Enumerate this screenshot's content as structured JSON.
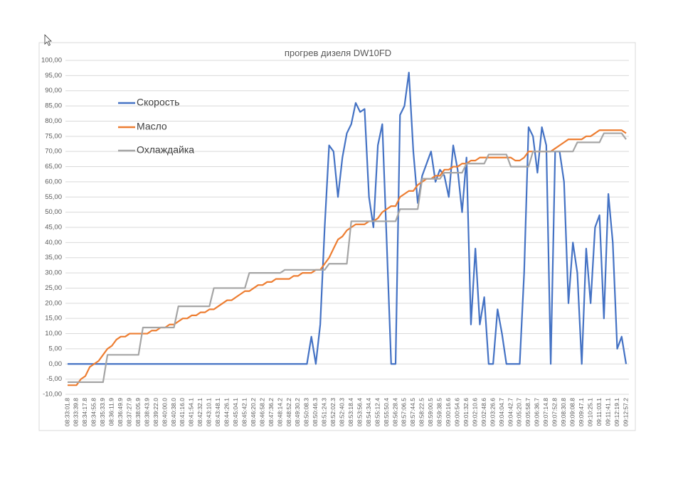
{
  "chart_data": {
    "type": "line",
    "title": "прогрев дизеля DW10FD",
    "categories": [
      "08:33:01.8",
      null,
      "08:33:39.8",
      null,
      "08:34:17.8",
      null,
      "08:34:55.8",
      null,
      "08:35:33.9",
      null,
      "08:36:11.9",
      null,
      "08:36:49.9",
      null,
      "08:37:27.9",
      null,
      "08:38:05.9",
      null,
      "08:38:43.9",
      null,
      "08:39:22.0",
      null,
      "08:40:00.0",
      null,
      "08:40:38.0",
      null,
      "08:41:16.0",
      null,
      "08:41:54.1",
      null,
      "08:42:32.1",
      null,
      "08:43:10.1",
      null,
      "08:43:48.1",
      null,
      "08:44:26.1",
      null,
      "08:45:04.1",
      null,
      "08:45:42.1",
      null,
      "08:46:20.2",
      null,
      "08:46:58.2",
      null,
      "08:47:36.2",
      null,
      "08:48:14.2",
      null,
      "08:48:52.2",
      null,
      "08:49:30.2",
      null,
      "08:50:08.3",
      null,
      "08:50:46.3",
      null,
      "08:51:24.3",
      null,
      "08:52:02.3",
      null,
      "08:52:40.3",
      null,
      "08:53:18.4",
      null,
      "08:53:56.4",
      null,
      "08:54:34.4",
      null,
      "08:55:12.4",
      null,
      "08:55:50.4",
      null,
      "08:56:28.4",
      null,
      "08:57:06.5",
      null,
      "08:57:44.5",
      null,
      "08:58:22.5",
      null,
      "08:59:00.5",
      null,
      "08:59:38.5",
      null,
      "09:00:16.6",
      null,
      "09:00:54.6",
      null,
      "09:01:32.6",
      null,
      "09:02:10.6",
      null,
      "09:02:48.6",
      null,
      "09:03:26.6",
      null,
      "09:04:04.7",
      null,
      "09:04:42.7",
      null,
      "09:05:20.7",
      null,
      "09:05:58.7",
      null,
      "09:06:36.7",
      null,
      "09:07:14.8",
      null,
      "09:07:52.8",
      null,
      "09:08:30.8",
      null,
      "09:09:08.8",
      null,
      "09:09:47.1",
      null,
      "09:10:25.1",
      null,
      "09:11:03.1",
      null,
      "09:11:41.1",
      null,
      "09:12:19.1",
      null,
      "09:12:57.2"
    ],
    "series": [
      {
        "name": "Скорость",
        "color": "#4472c4",
        "values": [
          0,
          0,
          0,
          0,
          0,
          0,
          0,
          0,
          0,
          0,
          0,
          0,
          0,
          0,
          0,
          0,
          0,
          0,
          0,
          0,
          0,
          0,
          0,
          0,
          0,
          0,
          0,
          0,
          0,
          0,
          0,
          0,
          0,
          0,
          0,
          0,
          0,
          0,
          0,
          0,
          0,
          0,
          0,
          0,
          0,
          0,
          0,
          0,
          0,
          0,
          0,
          0,
          0,
          0,
          0,
          9,
          0,
          13,
          45,
          72,
          70,
          55,
          68,
          76,
          79,
          86,
          83,
          84,
          55,
          45,
          72,
          79,
          40,
          0,
          0,
          82,
          85,
          96,
          70,
          53,
          62,
          66,
          70,
          60,
          64,
          62,
          55,
          72,
          64,
          50,
          68,
          13,
          38,
          13,
          22,
          0,
          0,
          18,
          10,
          0,
          0,
          0,
          0,
          30,
          78,
          75,
          63,
          78,
          72,
          0,
          70,
          70,
          60,
          20,
          40,
          30,
          0,
          38,
          20,
          45,
          49,
          15,
          56,
          40,
          5,
          9,
          0
        ]
      },
      {
        "name": "Масло",
        "color": "#ed7d31",
        "values": [
          -7,
          -7,
          -7,
          -5,
          -4,
          -1,
          0,
          1,
          3,
          5,
          6,
          8,
          9,
          9,
          10,
          10,
          10,
          10,
          10,
          11,
          11,
          12,
          12,
          13,
          13,
          14,
          15,
          15,
          16,
          16,
          17,
          17,
          18,
          18,
          19,
          20,
          21,
          21,
          22,
          23,
          24,
          24,
          25,
          26,
          26,
          27,
          27,
          28,
          28,
          28,
          28,
          29,
          29,
          30,
          30,
          30,
          31,
          31,
          33,
          35,
          38,
          41,
          42,
          44,
          45,
          46,
          46,
          46,
          47,
          47,
          48,
          50,
          51,
          52,
          52,
          55,
          56,
          57,
          57,
          59,
          60,
          61,
          61,
          62,
          62,
          64,
          64,
          65,
          65,
          66,
          66,
          67,
          67,
          68,
          68,
          68,
          68,
          68,
          68,
          68,
          68,
          67,
          67,
          68,
          70,
          70,
          70,
          70,
          70,
          70,
          71,
          72,
          73,
          74,
          74,
          74,
          74,
          75,
          75,
          76,
          77,
          77,
          77,
          77,
          77,
          77,
          76
        ]
      },
      {
        "name": "Охлаждайка",
        "color": "#a5a5a5",
        "values": [
          -6,
          -6,
          -6,
          -6,
          -6,
          -6,
          -6,
          -6,
          -6,
          3,
          3,
          3,
          3,
          3,
          3,
          3,
          3,
          12,
          12,
          12,
          12,
          12,
          12,
          12,
          12,
          19,
          19,
          19,
          19,
          19,
          19,
          19,
          19,
          25,
          25,
          25,
          25,
          25,
          25,
          25,
          25,
          30,
          30,
          30,
          30,
          30,
          30,
          30,
          30,
          31,
          31,
          31,
          31,
          31,
          31,
          31,
          31,
          31,
          31,
          33,
          33,
          33,
          33,
          33,
          47,
          47,
          47,
          47,
          47,
          47,
          47,
          47,
          47,
          47,
          47,
          51,
          51,
          51,
          51,
          51,
          61,
          61,
          61,
          61,
          61,
          63,
          63,
          63,
          63,
          63,
          66,
          66,
          66,
          66,
          66,
          69,
          69,
          69,
          69,
          69,
          65,
          65,
          65,
          65,
          65,
          70,
          70,
          70,
          70,
          70,
          70,
          70,
          70,
          70,
          70,
          73,
          73,
          73,
          73,
          73,
          73,
          76,
          76,
          76,
          76,
          76,
          74
        ]
      }
    ],
    "ylim": [
      -10,
      100
    ],
    "yticks": [
      {
        "value": -10,
        "label": "-10,00"
      },
      {
        "value": -5,
        "label": "-5,00"
      },
      {
        "value": 0,
        "label": "0,00"
      },
      {
        "value": 5,
        "label": "5,00"
      },
      {
        "value": 10,
        "label": "10,00"
      },
      {
        "value": 15,
        "label": "15,00"
      },
      {
        "value": 20,
        "label": "20,00"
      },
      {
        "value": 25,
        "label": "25,00"
      },
      {
        "value": 30,
        "label": "30,00"
      },
      {
        "value": 35,
        "label": "35,00"
      },
      {
        "value": 40,
        "label": "40,00"
      },
      {
        "value": 45,
        "label": "45,00"
      },
      {
        "value": 50,
        "label": "50,00"
      },
      {
        "value": 55,
        "label": "55,00"
      },
      {
        "value": 60,
        "label": "60,00"
      },
      {
        "value": 65,
        "label": "65,00"
      },
      {
        "value": 70,
        "label": "70,00"
      },
      {
        "value": 75,
        "label": "75,00"
      },
      {
        "value": 80,
        "label": "80,00"
      },
      {
        "value": 85,
        "label": "85,00"
      },
      {
        "value": 90,
        "label": "90,00"
      },
      {
        "value": 95,
        "label": "95,00"
      },
      {
        "value": 100,
        "label": "100,00"
      }
    ],
    "grid": true,
    "legend": "upper-left"
  }
}
